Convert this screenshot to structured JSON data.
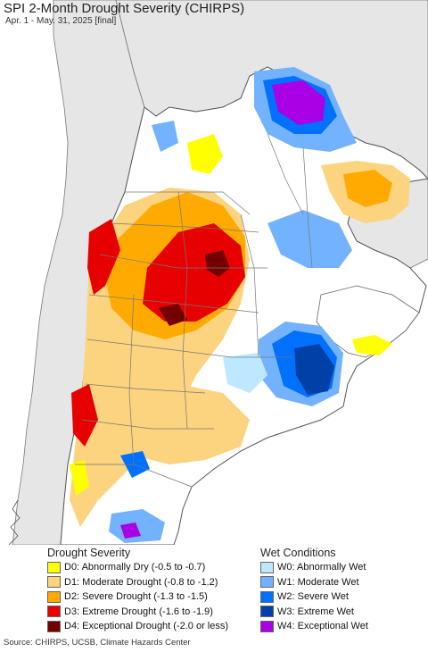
{
  "header": {
    "title": "SPI 2-Month Drought Severity (CHIRPS)",
    "subtitle": "Apr. 1 - May. 31, 2025 [final]"
  },
  "legend": {
    "drought": {
      "heading": "Drought Severity",
      "items": [
        {
          "label": "D0: Abnormally Dry (-0.5 to -0.7)",
          "color": "#ffff00"
        },
        {
          "label": "D1: Moderate Drought (-0.8 to -1.2)",
          "color": "#fcd37f"
        },
        {
          "label": "D2: Severe Drought (-1.3 to -1.5)",
          "color": "#ffaa00"
        },
        {
          "label": "D3: Extreme Drought (-1.6 to -1.9)",
          "color": "#e60000"
        },
        {
          "label": "D4: Exceptional Drought (-2.0 or less)",
          "color": "#730000"
        }
      ]
    },
    "wet": {
      "heading": "Wet Conditions",
      "items": [
        {
          "label": "W0: Abnormally Wet",
          "color": "#bee8ff"
        },
        {
          "label": "W1: Moderate Wet",
          "color": "#73b2ff"
        },
        {
          "label": "W2: Severe Wet",
          "color": "#0070ff"
        },
        {
          "label": "W3: Extreme Wet",
          "color": "#0041a8"
        },
        {
          "label": "W4: Exceptional Wet",
          "color": "#a900e6"
        }
      ]
    }
  },
  "footer": {
    "source": "Source: CHIRPS, UCSB, Climate Hazards Center"
  },
  "map": {
    "ocean_color": "#ffffff",
    "foreign_land_color": "#e6e6e6",
    "study_land_color": "#ffffff",
    "border_color": "#555555"
  }
}
